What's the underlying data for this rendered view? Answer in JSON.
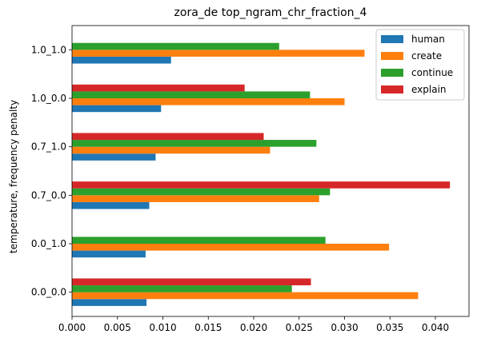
{
  "chart_data": {
    "type": "bar",
    "orientation": "horizontal",
    "title": "zora_de top_ngram_chr_fraction_4",
    "xlabel": "",
    "ylabel": "temperature, frequency penalty",
    "categories": [
      "0.0_0.0",
      "0.0_1.0",
      "0.7_0.0",
      "0.7_1.0",
      "1.0_0.0",
      "1.0_1.0"
    ],
    "series": [
      {
        "name": "human",
        "color": "#1f77b4",
        "values": [
          0.0082,
          0.0081,
          0.0085,
          0.0092,
          0.0098,
          0.0109
        ]
      },
      {
        "name": "create",
        "color": "#ff7f0e",
        "values": [
          0.0381,
          0.0349,
          0.0272,
          0.0218,
          0.03,
          0.0322
        ]
      },
      {
        "name": "continue",
        "color": "#2ca02c",
        "values": [
          0.0242,
          0.0279,
          0.0284,
          0.0269,
          0.0262,
          0.0228
        ]
      },
      {
        "name": "explain",
        "color": "#d62728",
        "values": [
          0.0263,
          null,
          0.0416,
          0.0211,
          0.019,
          null
        ]
      }
    ],
    "xlim": [
      0,
      0.0437
    ],
    "xticks": [
      0.0,
      0.005,
      0.01,
      0.015,
      0.02,
      0.025,
      0.03,
      0.035,
      0.04
    ],
    "xtick_labels": [
      "0.000",
      "0.005",
      "0.010",
      "0.015",
      "0.020",
      "0.025",
      "0.030",
      "0.035",
      "0.040"
    ],
    "grid": false,
    "legend_position": "top-right"
  }
}
